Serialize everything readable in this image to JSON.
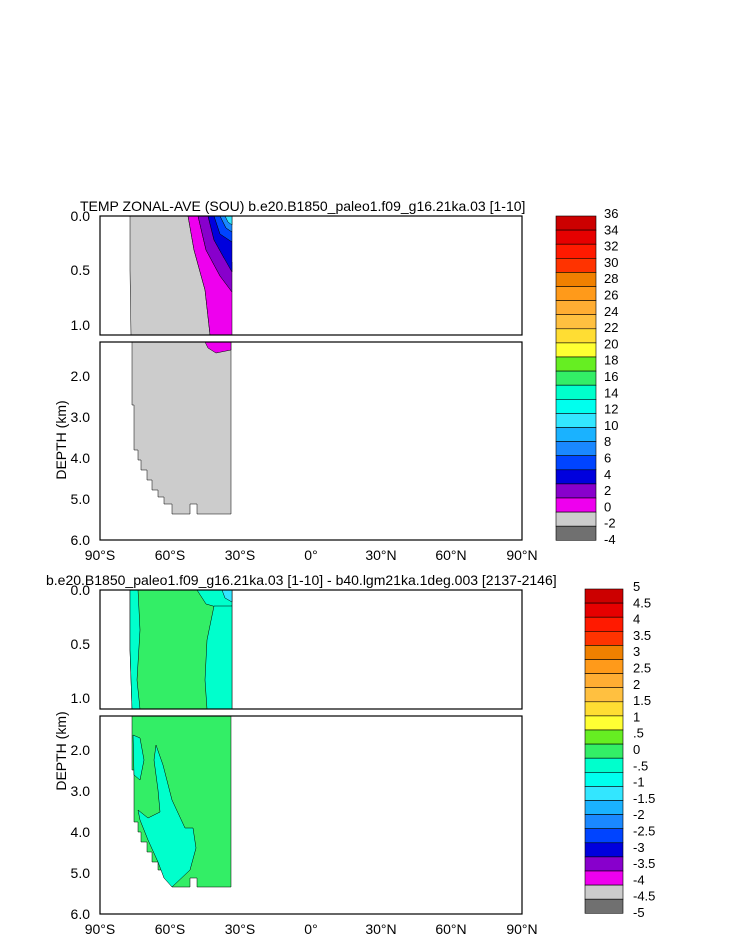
{
  "chart_data": [
    {
      "type": "heatmap",
      "title": "TEMP ZONAL-AVE (SOU) b.e20.B1850_paleo1.f09_g16.21ka.03 [1-10]",
      "ylabel": "DEPTH (km)",
      "xlabel": "",
      "xlim": [
        -90,
        90
      ],
      "x_ticks": [
        "90°S",
        "60°S",
        "30°S",
        "0°",
        "30°N",
        "60°N",
        "90°N"
      ],
      "upper_panel": {
        "ylim": [
          0,
          1.15
        ],
        "y_ticks": [
          "0.0",
          "0.5",
          "1.0"
        ]
      },
      "lower_panel": {
        "ylim": [
          1.15,
          6.0
        ],
        "y_ticks": [
          "2.0",
          "3.0",
          "4.0",
          "5.0",
          "6.0"
        ]
      },
      "colorbar": {
        "labels": [
          "36",
          "34",
          "32",
          "30",
          "28",
          "26",
          "24",
          "22",
          "20",
          "18",
          "16",
          "14",
          "12",
          "10",
          "8",
          "6",
          "4",
          "2",
          "0",
          "-2",
          "-4"
        ],
        "colors": [
          "#cc0000",
          "#e60000",
          "#ff1a00",
          "#ff3300",
          "#f08000",
          "#ff9a1a",
          "#ffad33",
          "#ffc040",
          "#ffdd33",
          "#ffff33",
          "#66ee22",
          "#33ee66",
          "#00ffcc",
          "#00ffee",
          "#33e6ff",
          "#1ab2ff",
          "#1a88ff",
          "#0044ff",
          "#0000dd",
          "#8800cc",
          "#ee00ee",
          "#cccccc",
          "#707070"
        ]
      },
      "annotations": "Data only south of ~33°S: mostly 0 to -2 (gray) with 0–2 and warmer water near 35–45°S in the upper 1 km"
    },
    {
      "type": "heatmap",
      "title": "b.e20.B1850_paleo1.f09_g16.21ka.03 [1-10] - b40.lgm21ka.1deg.003 [2137-2146]",
      "ylabel": "DEPTH (km)",
      "xlabel": "",
      "xlim": [
        -90,
        90
      ],
      "x_ticks": [
        "90°S",
        "60°S",
        "30°S",
        "0°",
        "30°N",
        "60°N",
        "90°N"
      ],
      "upper_panel": {
        "ylim": [
          0,
          1.15
        ],
        "y_ticks": [
          "0.0",
          "0.5",
          "1.0"
        ]
      },
      "lower_panel": {
        "ylim": [
          1.15,
          6.0
        ],
        "y_ticks": [
          "2.0",
          "3.0",
          "4.0",
          "5.0",
          "6.0"
        ]
      },
      "colorbar": {
        "labels": [
          "5",
          "4.5",
          "4",
          "3.5",
          "3",
          "2.5",
          "2",
          "1.5",
          "1",
          ".5",
          "0",
          "-.5",
          "-1",
          "-1.5",
          "-2",
          "-2.5",
          "-3",
          "-3.5",
          "-4",
          "-4.5",
          "-5"
        ],
        "colors": [
          "#cc0000",
          "#e60000",
          "#ff1a00",
          "#ff3300",
          "#f08000",
          "#ff9a1a",
          "#ffad33",
          "#ffc040",
          "#ffdd33",
          "#ffff33",
          "#66ee22",
          "#33ee66",
          "#00ffcc",
          "#00ffee",
          "#33e6ff",
          "#1ab2ff",
          "#1a88ff",
          "#0044ff",
          "#0000dd",
          "#8800cc",
          "#ee00ee",
          "#cccccc",
          "#707070"
        ]
      },
      "annotations": "Difference mostly 0 to .5 (green) with 0 to -.5 (cyan) patches south of ~33°S"
    }
  ]
}
